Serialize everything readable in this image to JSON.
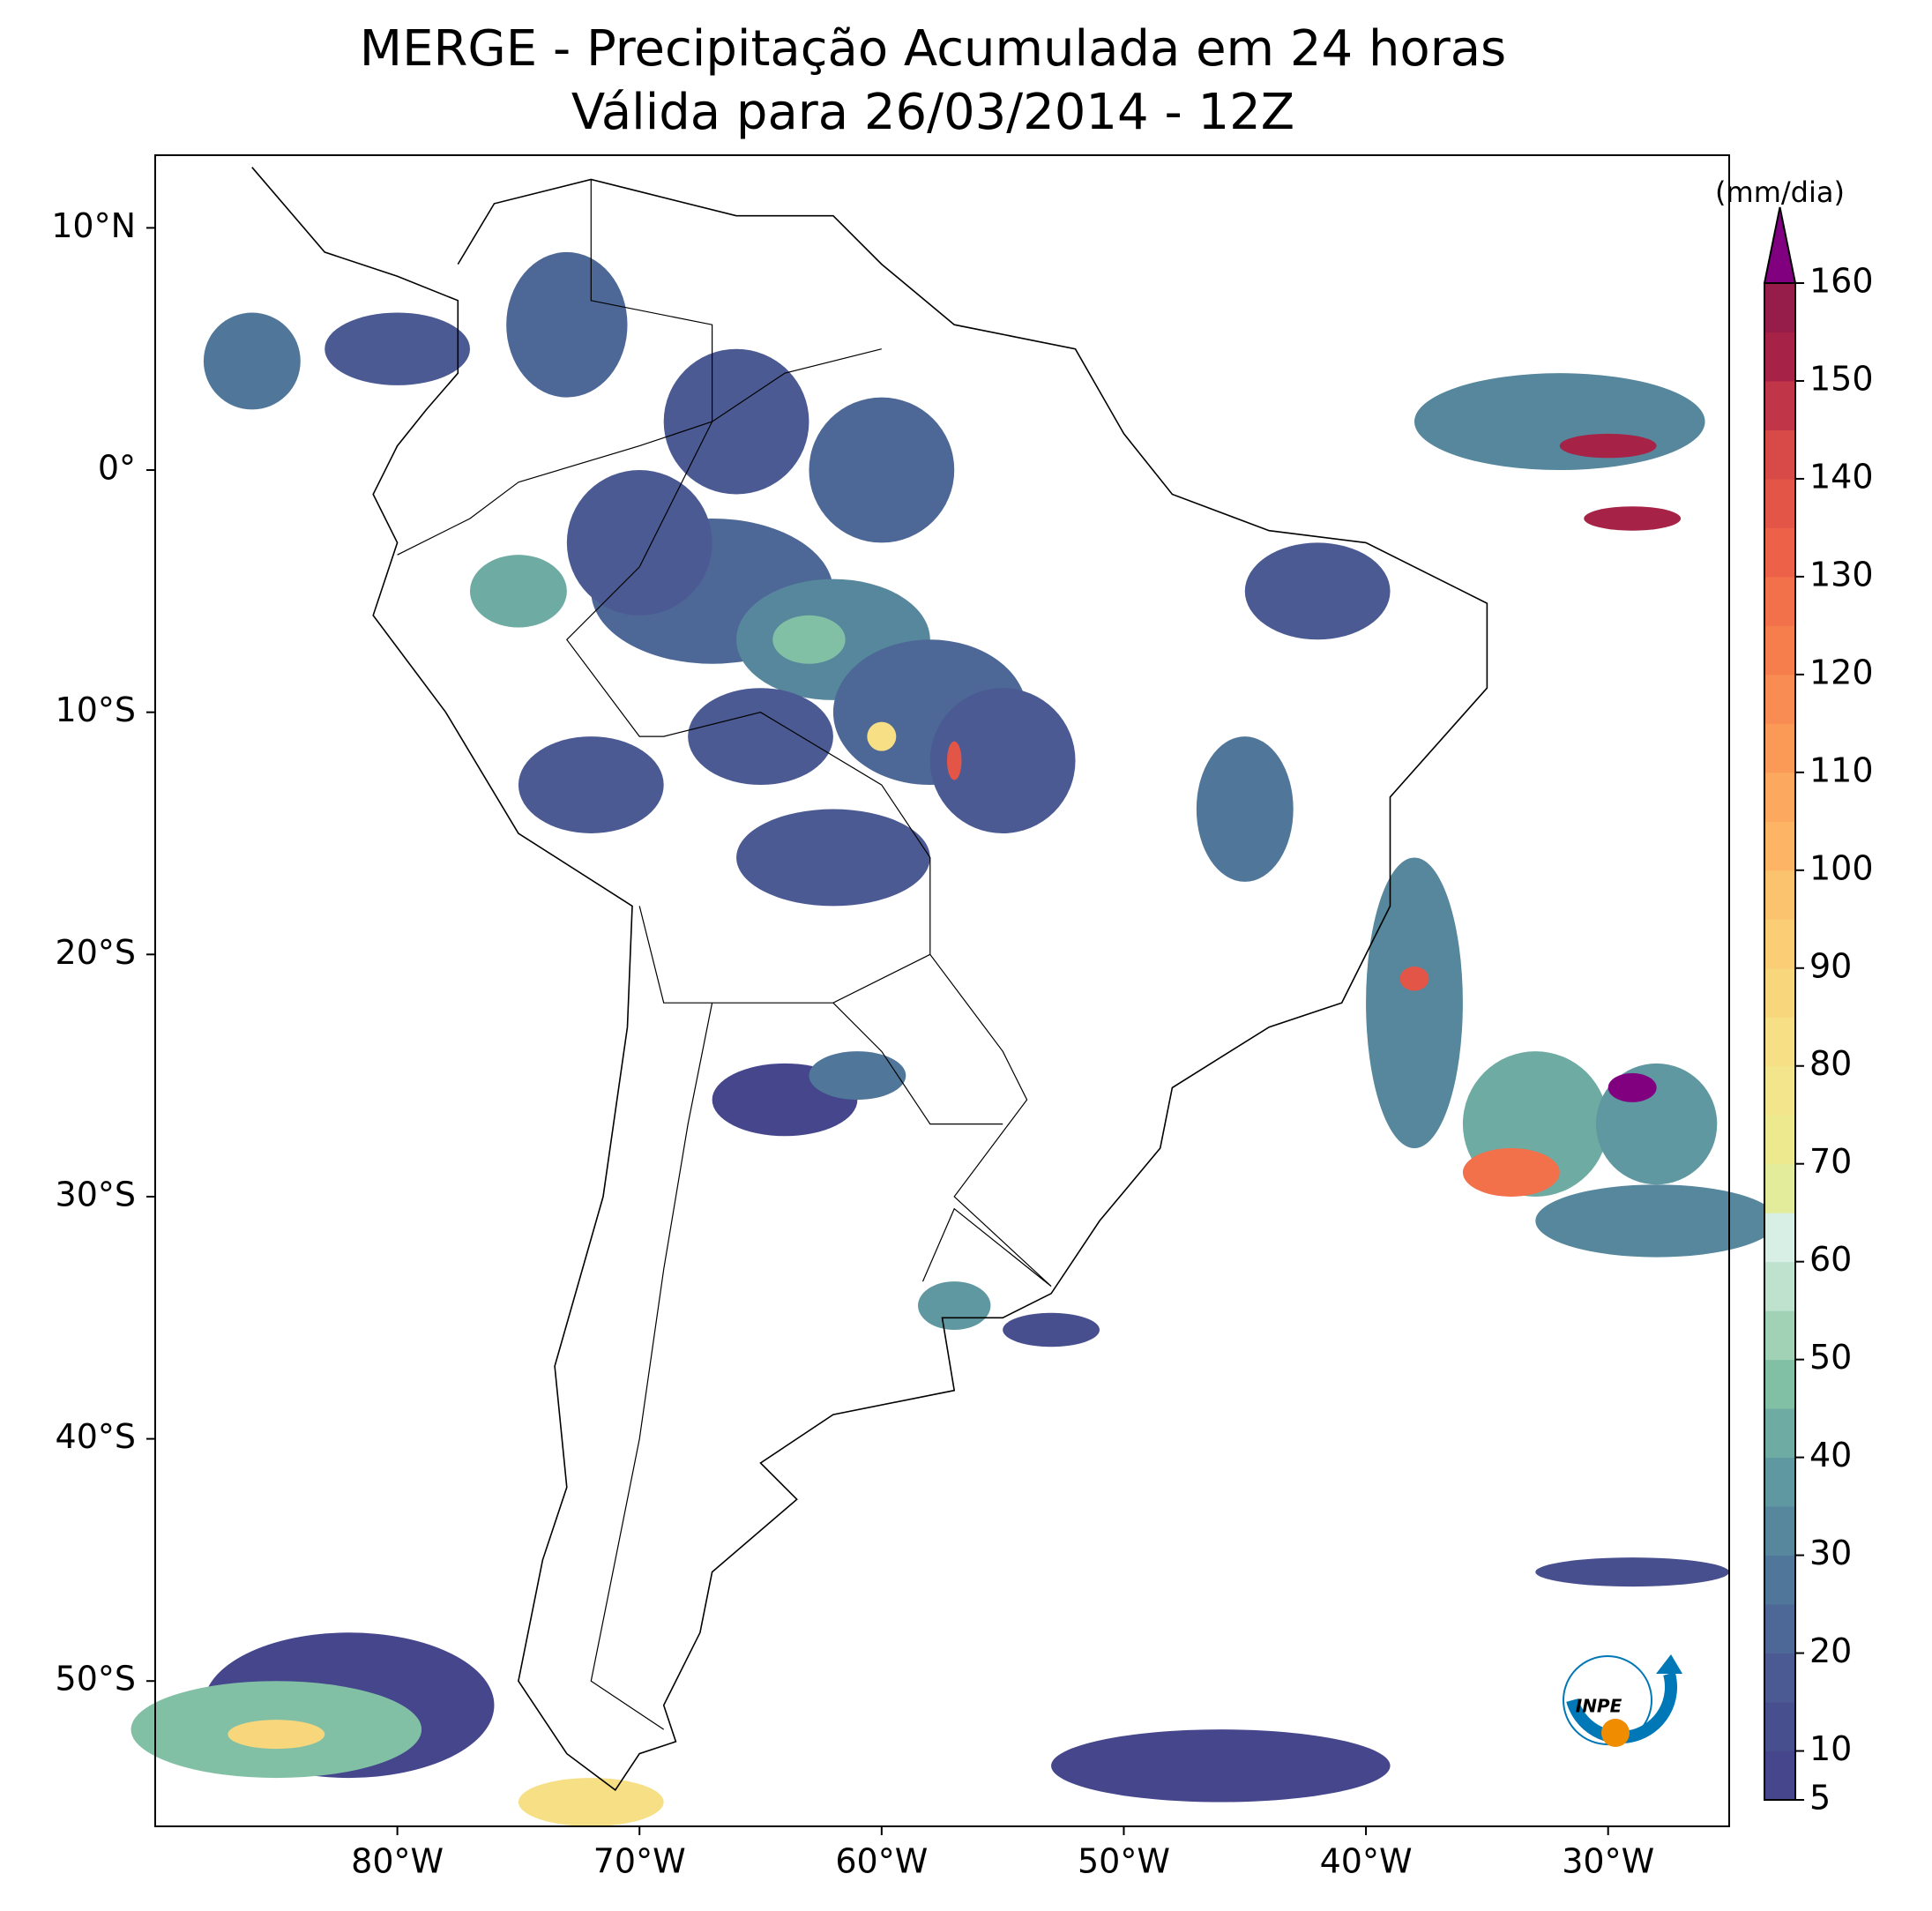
{
  "chart_data": {
    "type": "map",
    "title": "MERGE - Precipitação Acumulada em 24 horas",
    "subtitle": "Válida para 26/03/2014 - 12Z",
    "xlim": [
      -90,
      -25
    ],
    "ylim": [
      -56,
      13
    ],
    "xticks": [
      {
        "value": -80,
        "label": "80°W"
      },
      {
        "value": -70,
        "label": "70°W"
      },
      {
        "value": -60,
        "label": "60°W"
      },
      {
        "value": -50,
        "label": "50°W"
      },
      {
        "value": -40,
        "label": "40°W"
      },
      {
        "value": -30,
        "label": "30°W"
      }
    ],
    "yticks": [
      {
        "value": 10,
        "label": "10°N"
      },
      {
        "value": 0,
        "label": "0°"
      },
      {
        "value": -10,
        "label": "10°S"
      },
      {
        "value": -20,
        "label": "20°S"
      },
      {
        "value": -30,
        "label": "30°S"
      },
      {
        "value": -40,
        "label": "40°S"
      },
      {
        "value": -50,
        "label": "50°S"
      }
    ],
    "colorbar": {
      "unit": "(mm/dia)",
      "lim": [
        5,
        160
      ],
      "ticks": [
        5,
        10,
        20,
        30,
        40,
        50,
        60,
        70,
        80,
        90,
        100,
        110,
        120,
        130,
        140,
        150,
        160
      ],
      "levels": [
        5,
        10,
        15,
        20,
        25,
        30,
        35,
        40,
        45,
        50,
        55,
        60,
        65,
        70,
        75,
        80,
        85,
        90,
        95,
        100,
        105,
        110,
        115,
        120,
        125,
        130,
        135,
        140,
        145,
        150,
        155,
        160
      ],
      "colors": [
        "#45468c",
        "#484f8e",
        "#4b5a93",
        "#4d6797",
        "#50779a",
        "#56879c",
        "#5f98a0",
        "#6daba3",
        "#82c0a6",
        "#a2d2b6",
        "#bfe2cf",
        "#d8efe6",
        "#e2ec9a",
        "#ede98f",
        "#f3e58b",
        "#f6df84",
        "#f8d67c",
        "#fbcd74",
        "#fcc36e",
        "#fdb465",
        "#fca85e",
        "#fb9a57",
        "#f98c52",
        "#f67e4d",
        "#f2704a",
        "#ec6148",
        "#e35547",
        "#d84a47",
        "#c03547",
        "#a62347",
        "#961d4a"
      ],
      "extend_color": "#800080"
    },
    "logo_text": "INPE"
  }
}
